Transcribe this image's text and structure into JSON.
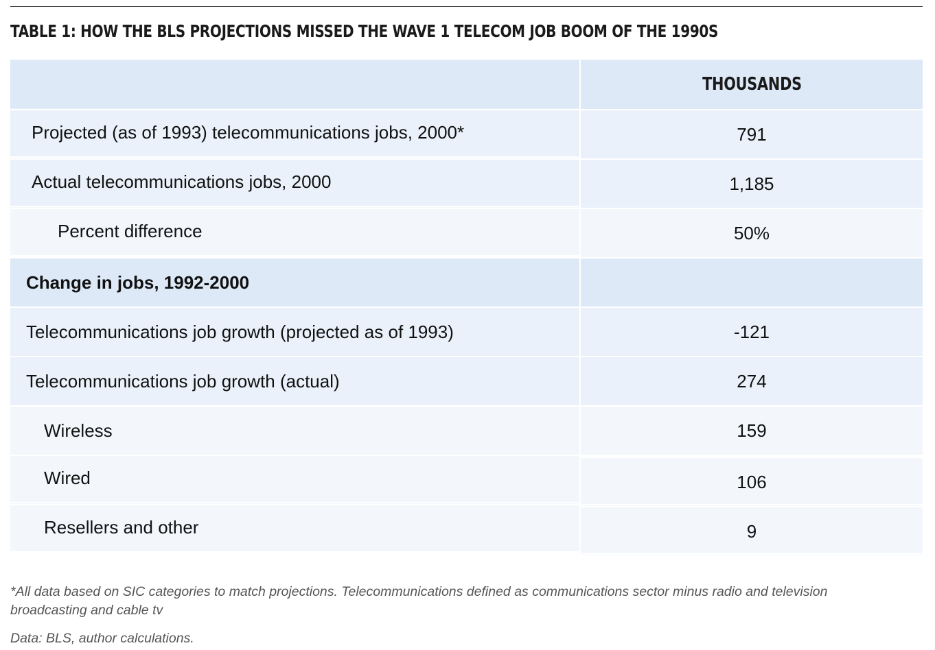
{
  "title": "TABLE 1: HOW THE BLS PROJECTIONS MISSED THE WAVE 1 TELECOM JOB BOOM OF THE 1990S",
  "table": {
    "column_header": "THOUSANDS",
    "rows": [
      {
        "label": "Projected (as of 1993) telecommunications jobs, 2000*",
        "value": "791"
      },
      {
        "label": "Actual telecommunications jobs, 2000",
        "value": "1,185"
      },
      {
        "label": "Percent difference",
        "value": "50%"
      },
      {
        "label": "Change in jobs, 1992-2000",
        "value": ""
      },
      {
        "label": "Telecommunications job growth (projected as of 1993)",
        "value": "-121"
      },
      {
        "label": "Telecommunications job growth (actual)",
        "value": "274"
      },
      {
        "label": "Wireless",
        "value": "159"
      },
      {
        "label": "Wired",
        "value": "106"
      },
      {
        "label": "Resellers and other",
        "value": "9"
      }
    ]
  },
  "footnote": "*All data based on SIC categories to match projections. Telecommunications defined as communications sector minus radio and television broadcasting and cable tv",
  "source": "Data: BLS, author calculations."
}
